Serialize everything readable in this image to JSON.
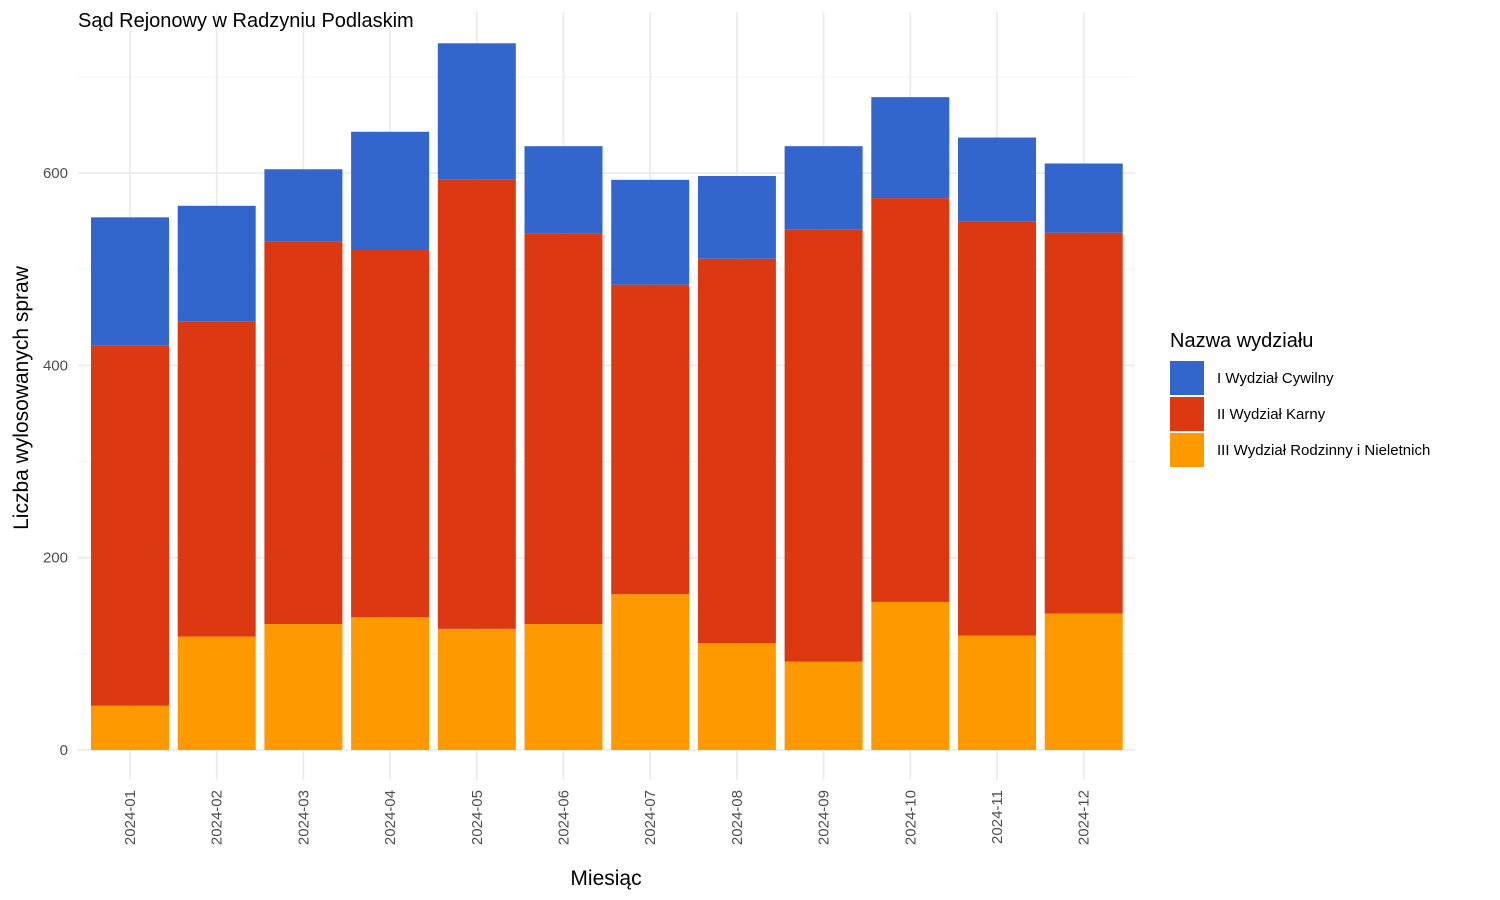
{
  "chart_data": {
    "type": "bar",
    "stacked": true,
    "title": "Sąd Rejonowy w Radzyniu Podlaskim",
    "xlabel": "Miesiąc",
    "ylabel": "Liczba wylosowanych spraw",
    "ylim": [
      0,
      730
    ],
    "yticks": [
      0,
      200,
      400,
      600
    ],
    "grid": true,
    "legend": {
      "title": "Nazwa wydziału",
      "position": "right"
    },
    "categories": [
      "2024-01",
      "2024-02",
      "2024-03",
      "2024-04",
      "2024-05",
      "2024-06",
      "2024-07",
      "2024-08",
      "2024-09",
      "2024-10",
      "2024-11",
      "2024-12"
    ],
    "series": [
      {
        "name": "III Wydział Rodzinny i Nieletnich",
        "color": "#ff9900",
        "values": [
          46,
          118,
          131,
          138,
          126,
          131,
          162,
          111,
          92,
          154,
          119,
          142
        ]
      },
      {
        "name": "II Wydział Karny",
        "color": "#dc3912",
        "values": [
          375,
          328,
          398,
          382,
          467,
          406,
          322,
          400,
          449,
          420,
          431,
          396
        ]
      },
      {
        "name": "I Wydział Cywilny",
        "color": "#3366cc",
        "values": [
          133,
          120,
          75,
          123,
          142,
          91,
          109,
          86,
          87,
          105,
          87,
          72
        ]
      }
    ],
    "legend_order": [
      "I Wydział Cywilny",
      "II Wydział Karny",
      "III Wydział Rodzinny i Nieletnich"
    ]
  }
}
